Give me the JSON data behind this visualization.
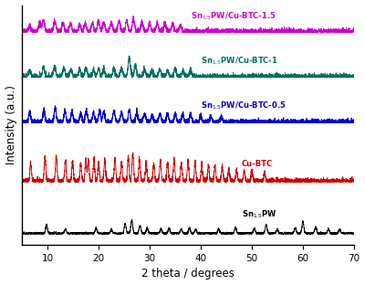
{
  "xlabel": "2 theta / degrees",
  "ylabel": "Intensity (a.u.)",
  "xlim": [
    5,
    70
  ],
  "colors": {
    "Sn15PW": "#000000",
    "CuBTC": "#cc0000",
    "Sn15PW_CuBTC_05": "#0000cc",
    "Sn15PW_CuBTC_1": "#007060",
    "Sn15PW_CuBTC_15": "#cc00cc"
  },
  "labels": {
    "Sn15PW": "Sn$_{1.5}$PW",
    "CuBTC": "Cu-BTC",
    "Sn15PW_CuBTC_05": "Sn$_{1.5}$PW/Cu-BTC-0.5",
    "Sn15PW_CuBTC_1": "Sn$_{1.5}$PW/Cu-BTC-1",
    "Sn15PW_CuBTC_15": "Sn$_{1.5}$PW/Cu-BTC-1.5"
  },
  "offsets": {
    "Sn15PW": 0.0,
    "CuBTC": 1.5,
    "Sn15PW_CuBTC_05": 3.2,
    "Sn15PW_CuBTC_1": 4.5,
    "Sn15PW_CuBTC_15": 5.8
  },
  "xticks": [
    10,
    20,
    30,
    40,
    50,
    60,
    70
  ],
  "background_color": "#ffffff"
}
